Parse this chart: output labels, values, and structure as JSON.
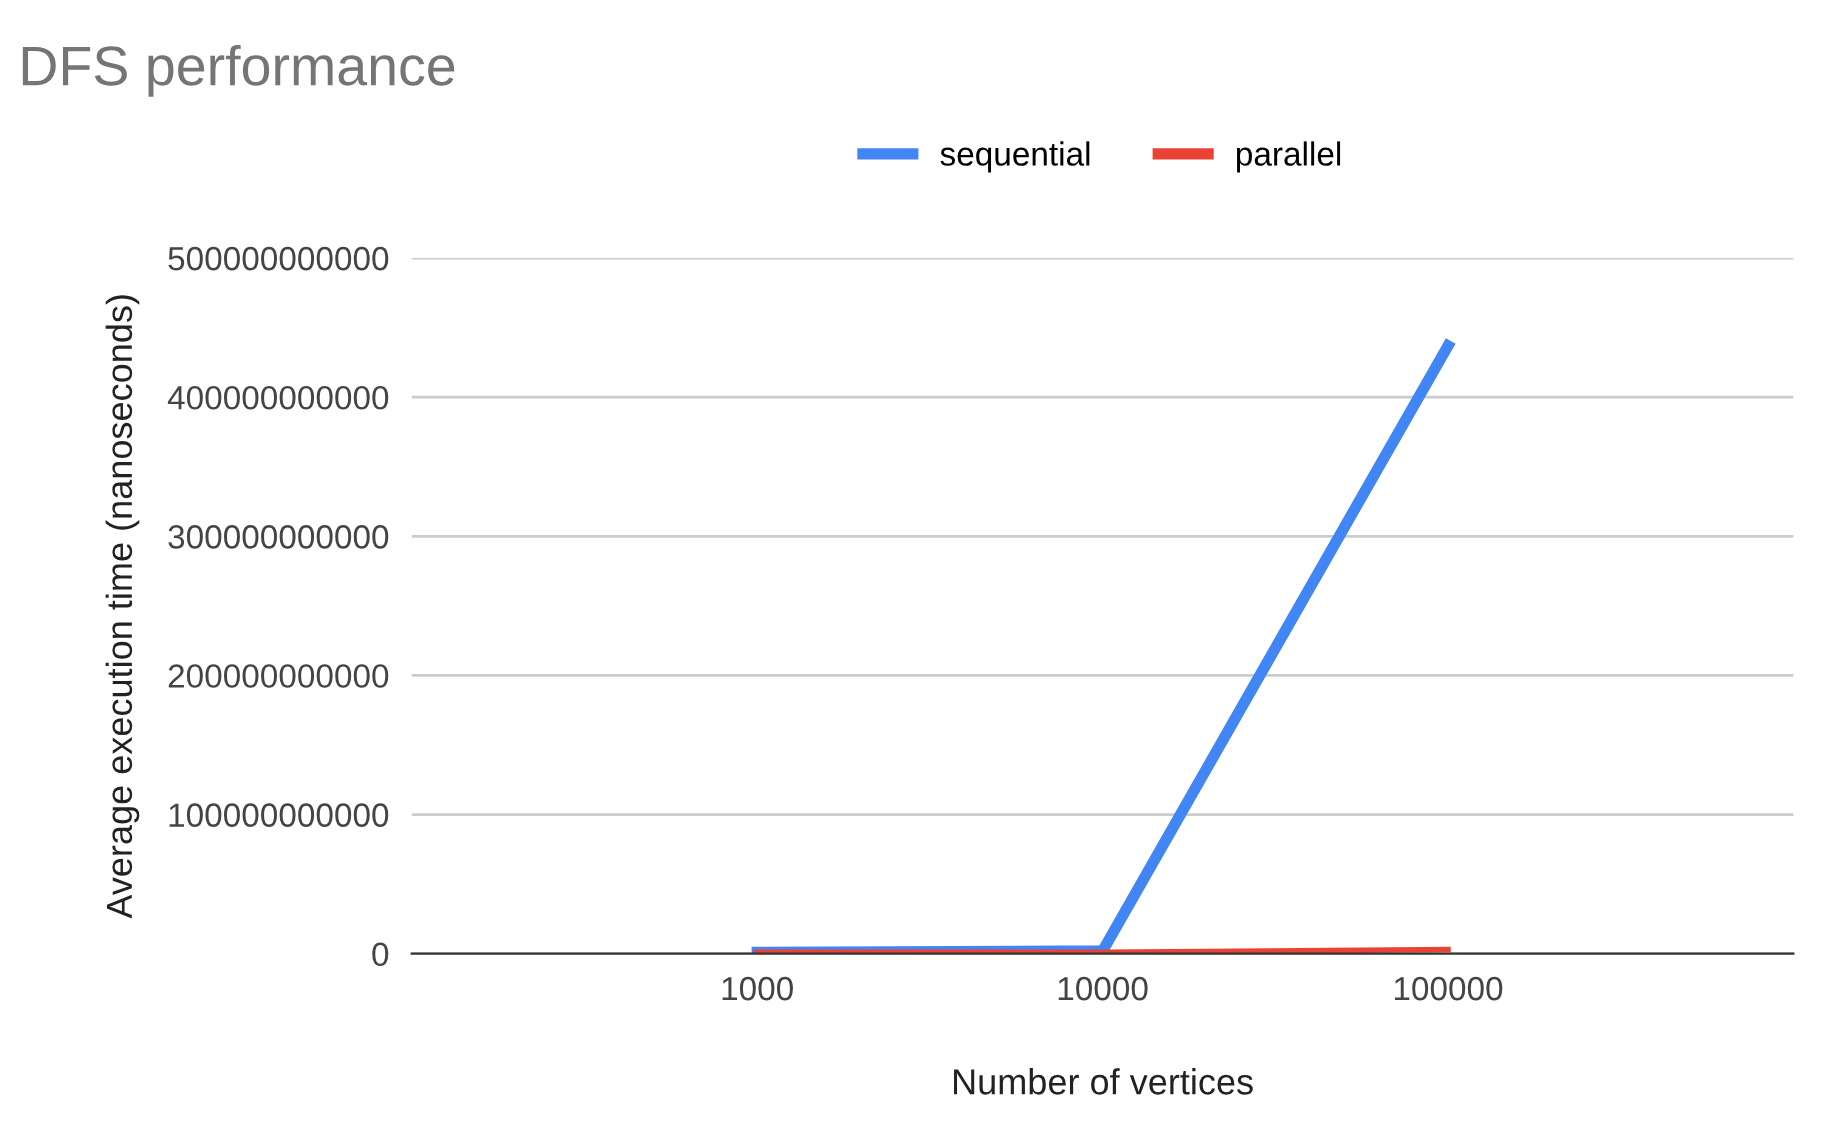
{
  "chart_data": {
    "type": "line",
    "title": "DFS performance",
    "xlabel": "Number of vertices",
    "ylabel": "Average execution time (nanoseconds)",
    "categories": [
      "1000",
      "10000",
      "100000"
    ],
    "series": [
      {
        "name": "sequential",
        "color": "#4285f4",
        "values": [
          1000000000,
          2000000000,
          437000000000
        ]
      },
      {
        "name": "parallel",
        "color": "#ea4335",
        "values": [
          1000000000,
          1000000000,
          3000000000
        ]
      }
    ],
    "ylim": [
      0,
      500000000000
    ],
    "yticks": [
      0,
      100000000000,
      200000000000,
      300000000000,
      400000000000,
      500000000000
    ],
    "grid": "y",
    "legend": "top",
    "marker": "none",
    "line_style": "solid"
  }
}
